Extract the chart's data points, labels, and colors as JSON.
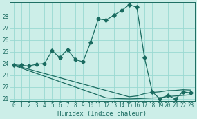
{
  "xlabel": "Humidex (Indice chaleur)",
  "bg_color": "#cceee8",
  "grid_color": "#99d9d2",
  "line_color": "#1a6b60",
  "x_humidex": [
    0,
    1,
    2,
    3,
    4,
    5,
    6,
    7,
    8,
    9,
    10,
    11,
    12,
    13,
    14,
    15,
    16,
    17,
    18,
    19,
    20,
    21,
    22,
    23
  ],
  "y_main": [
    23.9,
    23.85,
    23.8,
    23.95,
    24.0,
    25.1,
    24.5,
    25.2,
    24.35,
    24.15,
    25.8,
    27.8,
    27.7,
    28.1,
    28.5,
    29.0,
    28.8,
    24.5,
    21.6,
    21.0,
    21.3,
    21.0,
    21.6,
    21.5
  ],
  "y_line2": [
    23.85,
    23.62,
    23.39,
    23.16,
    22.93,
    22.7,
    22.47,
    22.24,
    22.01,
    21.78,
    21.55,
    21.32,
    21.09,
    21.05,
    21.02,
    21.0,
    21.02,
    21.05,
    21.08,
    21.1,
    21.2,
    21.25,
    21.3,
    21.35
  ],
  "y_line3": [
    23.88,
    23.7,
    23.52,
    23.34,
    23.16,
    22.98,
    22.8,
    22.62,
    22.44,
    22.26,
    22.08,
    21.9,
    21.72,
    21.54,
    21.36,
    21.18,
    21.25,
    21.45,
    21.55,
    21.6,
    21.7,
    21.72,
    21.78,
    21.75
  ],
  "ylim": [
    20.8,
    29.2
  ],
  "xlim": [
    -0.5,
    23.5
  ],
  "yticks": [
    21,
    22,
    23,
    24,
    25,
    26,
    27,
    28
  ],
  "xticks": [
    0,
    1,
    2,
    3,
    4,
    5,
    6,
    7,
    8,
    9,
    10,
    11,
    12,
    13,
    14,
    15,
    16,
    17,
    18,
    19,
    20,
    21,
    22,
    23
  ],
  "markersize": 2.8,
  "linewidth": 0.9
}
